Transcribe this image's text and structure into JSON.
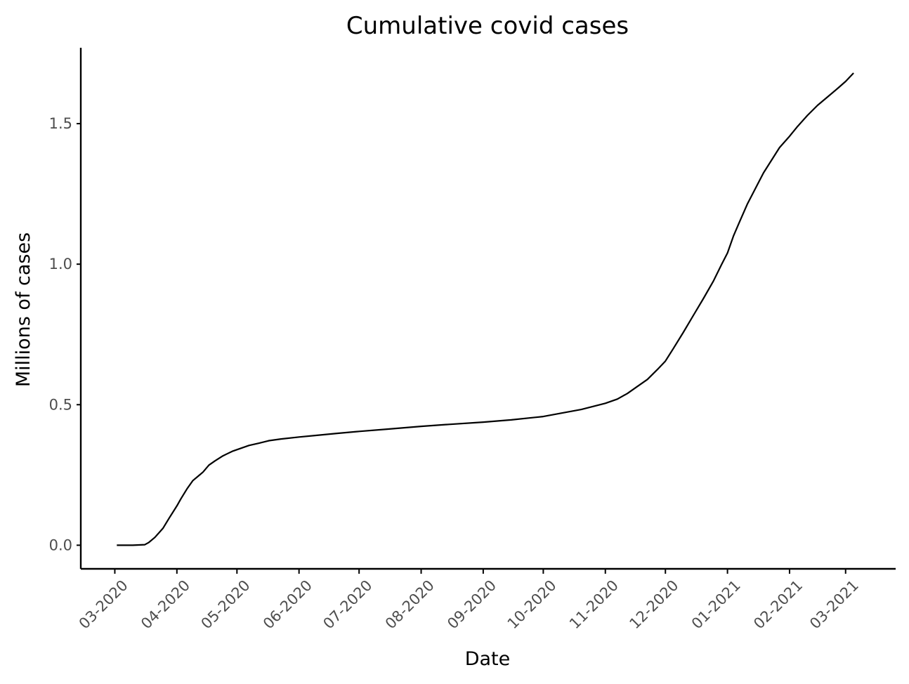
{
  "chart_data": {
    "type": "line",
    "title": "Cumulative covid cases",
    "xlabel": "Date",
    "ylabel": "Millions of cases",
    "x_tick_labels": [
      "03-2020",
      "04-2020",
      "05-2020",
      "06-2020",
      "07-2020",
      "08-2020",
      "09-2020",
      "10-2020",
      "11-2020",
      "12-2020",
      "01-2021",
      "02-2021",
      "03-2021"
    ],
    "x_ticks": [
      "2020-03-01",
      "2020-04-01",
      "2020-05-01",
      "2020-06-01",
      "2020-07-01",
      "2020-08-01",
      "2020-09-01",
      "2020-10-01",
      "2020-11-01",
      "2020-12-01",
      "2021-01-01",
      "2021-02-01",
      "2021-03-01"
    ],
    "y_ticks": [
      0.0,
      0.5,
      1.0,
      1.5
    ],
    "y_tick_labels": [
      "0.0",
      "0.5",
      "1.0",
      "1.5"
    ],
    "xlim": [
      "2020-02-13",
      "2021-03-26"
    ],
    "ylim": [
      -0.084,
      1.77
    ],
    "grid": false,
    "series": [
      {
        "x": [
          "2020-03-02",
          "2020-03-10",
          "2020-03-16",
          "2020-03-18",
          "2020-03-21",
          "2020-03-25",
          "2020-03-28",
          "2020-04-01",
          "2020-04-03",
          "2020-04-06",
          "2020-04-09",
          "2020-04-12",
          "2020-04-14",
          "2020-04-17",
          "2020-04-20",
          "2020-04-24",
          "2020-04-26",
          "2020-04-29",
          "2020-05-03",
          "2020-05-07",
          "2020-05-12",
          "2020-05-17",
          "2020-05-23",
          "2020-06-01",
          "2020-06-10",
          "2020-06-20",
          "2020-07-01",
          "2020-07-15",
          "2020-08-01",
          "2020-08-15",
          "2020-09-01",
          "2020-09-15",
          "2020-10-01",
          "2020-10-10",
          "2020-10-20",
          "2020-11-01",
          "2020-11-07",
          "2020-11-12",
          "2020-11-17",
          "2020-11-22",
          "2020-11-27",
          "2020-12-01",
          "2020-12-05",
          "2020-12-10",
          "2020-12-15",
          "2020-12-20",
          "2020-12-25",
          "2020-12-29",
          "2021-01-01",
          "2021-01-04",
          "2021-01-07",
          "2021-01-11",
          "2021-01-15",
          "2021-01-19",
          "2021-01-23",
          "2021-01-27",
          "2021-02-01",
          "2021-02-05",
          "2021-02-10",
          "2021-02-15",
          "2021-02-20",
          "2021-02-25",
          "2021-03-01",
          "2021-03-05"
        ],
        "y": [
          0.0,
          0.0,
          0.002,
          0.01,
          0.028,
          0.06,
          0.095,
          0.14,
          0.165,
          0.2,
          0.23,
          0.248,
          0.26,
          0.285,
          0.3,
          0.318,
          0.325,
          0.335,
          0.345,
          0.355,
          0.363,
          0.372,
          0.378,
          0.385,
          0.391,
          0.398,
          0.405,
          0.413,
          0.423,
          0.43,
          0.438,
          0.446,
          0.458,
          0.47,
          0.483,
          0.505,
          0.52,
          0.54,
          0.565,
          0.59,
          0.625,
          0.655,
          0.7,
          0.758,
          0.818,
          0.878,
          0.94,
          0.998,
          1.04,
          1.1,
          1.15,
          1.215,
          1.27,
          1.325,
          1.37,
          1.415,
          1.455,
          1.49,
          1.53,
          1.565,
          1.595,
          1.625,
          1.65,
          1.68
        ]
      }
    ]
  }
}
